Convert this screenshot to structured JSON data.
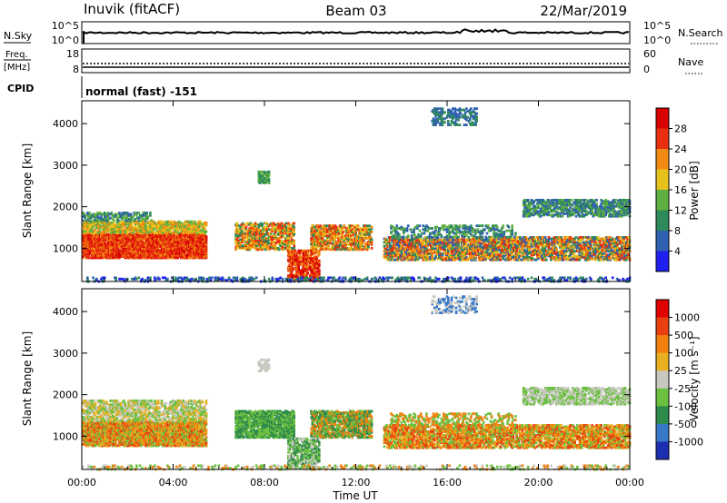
{
  "header": {
    "station": "Inuvik (fitACF)",
    "beam": "Beam 03",
    "date": "22/Mar/2019"
  },
  "top_panels": {
    "nsky_label": "N.Sky",
    "nsearch_label": "N.Search",
    "nsky_ticks": [
      "10^5",
      "10^0"
    ],
    "nsearch_ticks": [
      "10^5",
      "10^0"
    ],
    "freq_label_1": "Freq.",
    "freq_label_2": "[MHz]",
    "freq_ticks": [
      "18",
      "8"
    ],
    "nave_label": "Nave",
    "nave_ticks": [
      "60",
      "0"
    ],
    "cpid_label": "CPID",
    "cpid_text": "normal (fast) -151"
  },
  "chart_data": [
    {
      "type": "heatmap",
      "panel": "power",
      "ylabel": "Slant Range [km]",
      "y_ticks": [
        1000,
        2000,
        3000,
        4000
      ],
      "ylim": [
        200,
        4550
      ],
      "colorbar_label": "Power [dB]",
      "colorbar_ticks": [
        "28",
        "24",
        "20",
        "16",
        "12",
        "8",
        "4"
      ],
      "colors": [
        "#1f1ff0",
        "#2f5fb0",
        "#2e8a5a",
        "#5fb040",
        "#e8c21c",
        "#f08a10",
        "#e83010",
        "#d80000"
      ]
    },
    {
      "type": "heatmap",
      "panel": "velocity",
      "ylabel": "Slant Range [km]",
      "y_ticks": [
        1000,
        2000,
        3000,
        4000
      ],
      "ylim": [
        200,
        4550
      ],
      "colorbar_label": "Velocity [m s⁻¹]",
      "colorbar_ticks": [
        "1000",
        "500",
        "100",
        "25",
        "-25",
        "-100",
        "-500",
        "-1000"
      ],
      "colors": [
        "#1c2fb0",
        "#3878c8",
        "#2e8a4a",
        "#6cc040",
        "#c8c8c0",
        "#e8b020",
        "#f08010",
        "#e84010",
        "#e00000"
      ]
    }
  ],
  "xaxis": {
    "ticks": [
      "00:00",
      "04:00",
      "08:00",
      "12:00",
      "16:00",
      "20:00",
      "00:00"
    ],
    "label": "Time UT"
  }
}
